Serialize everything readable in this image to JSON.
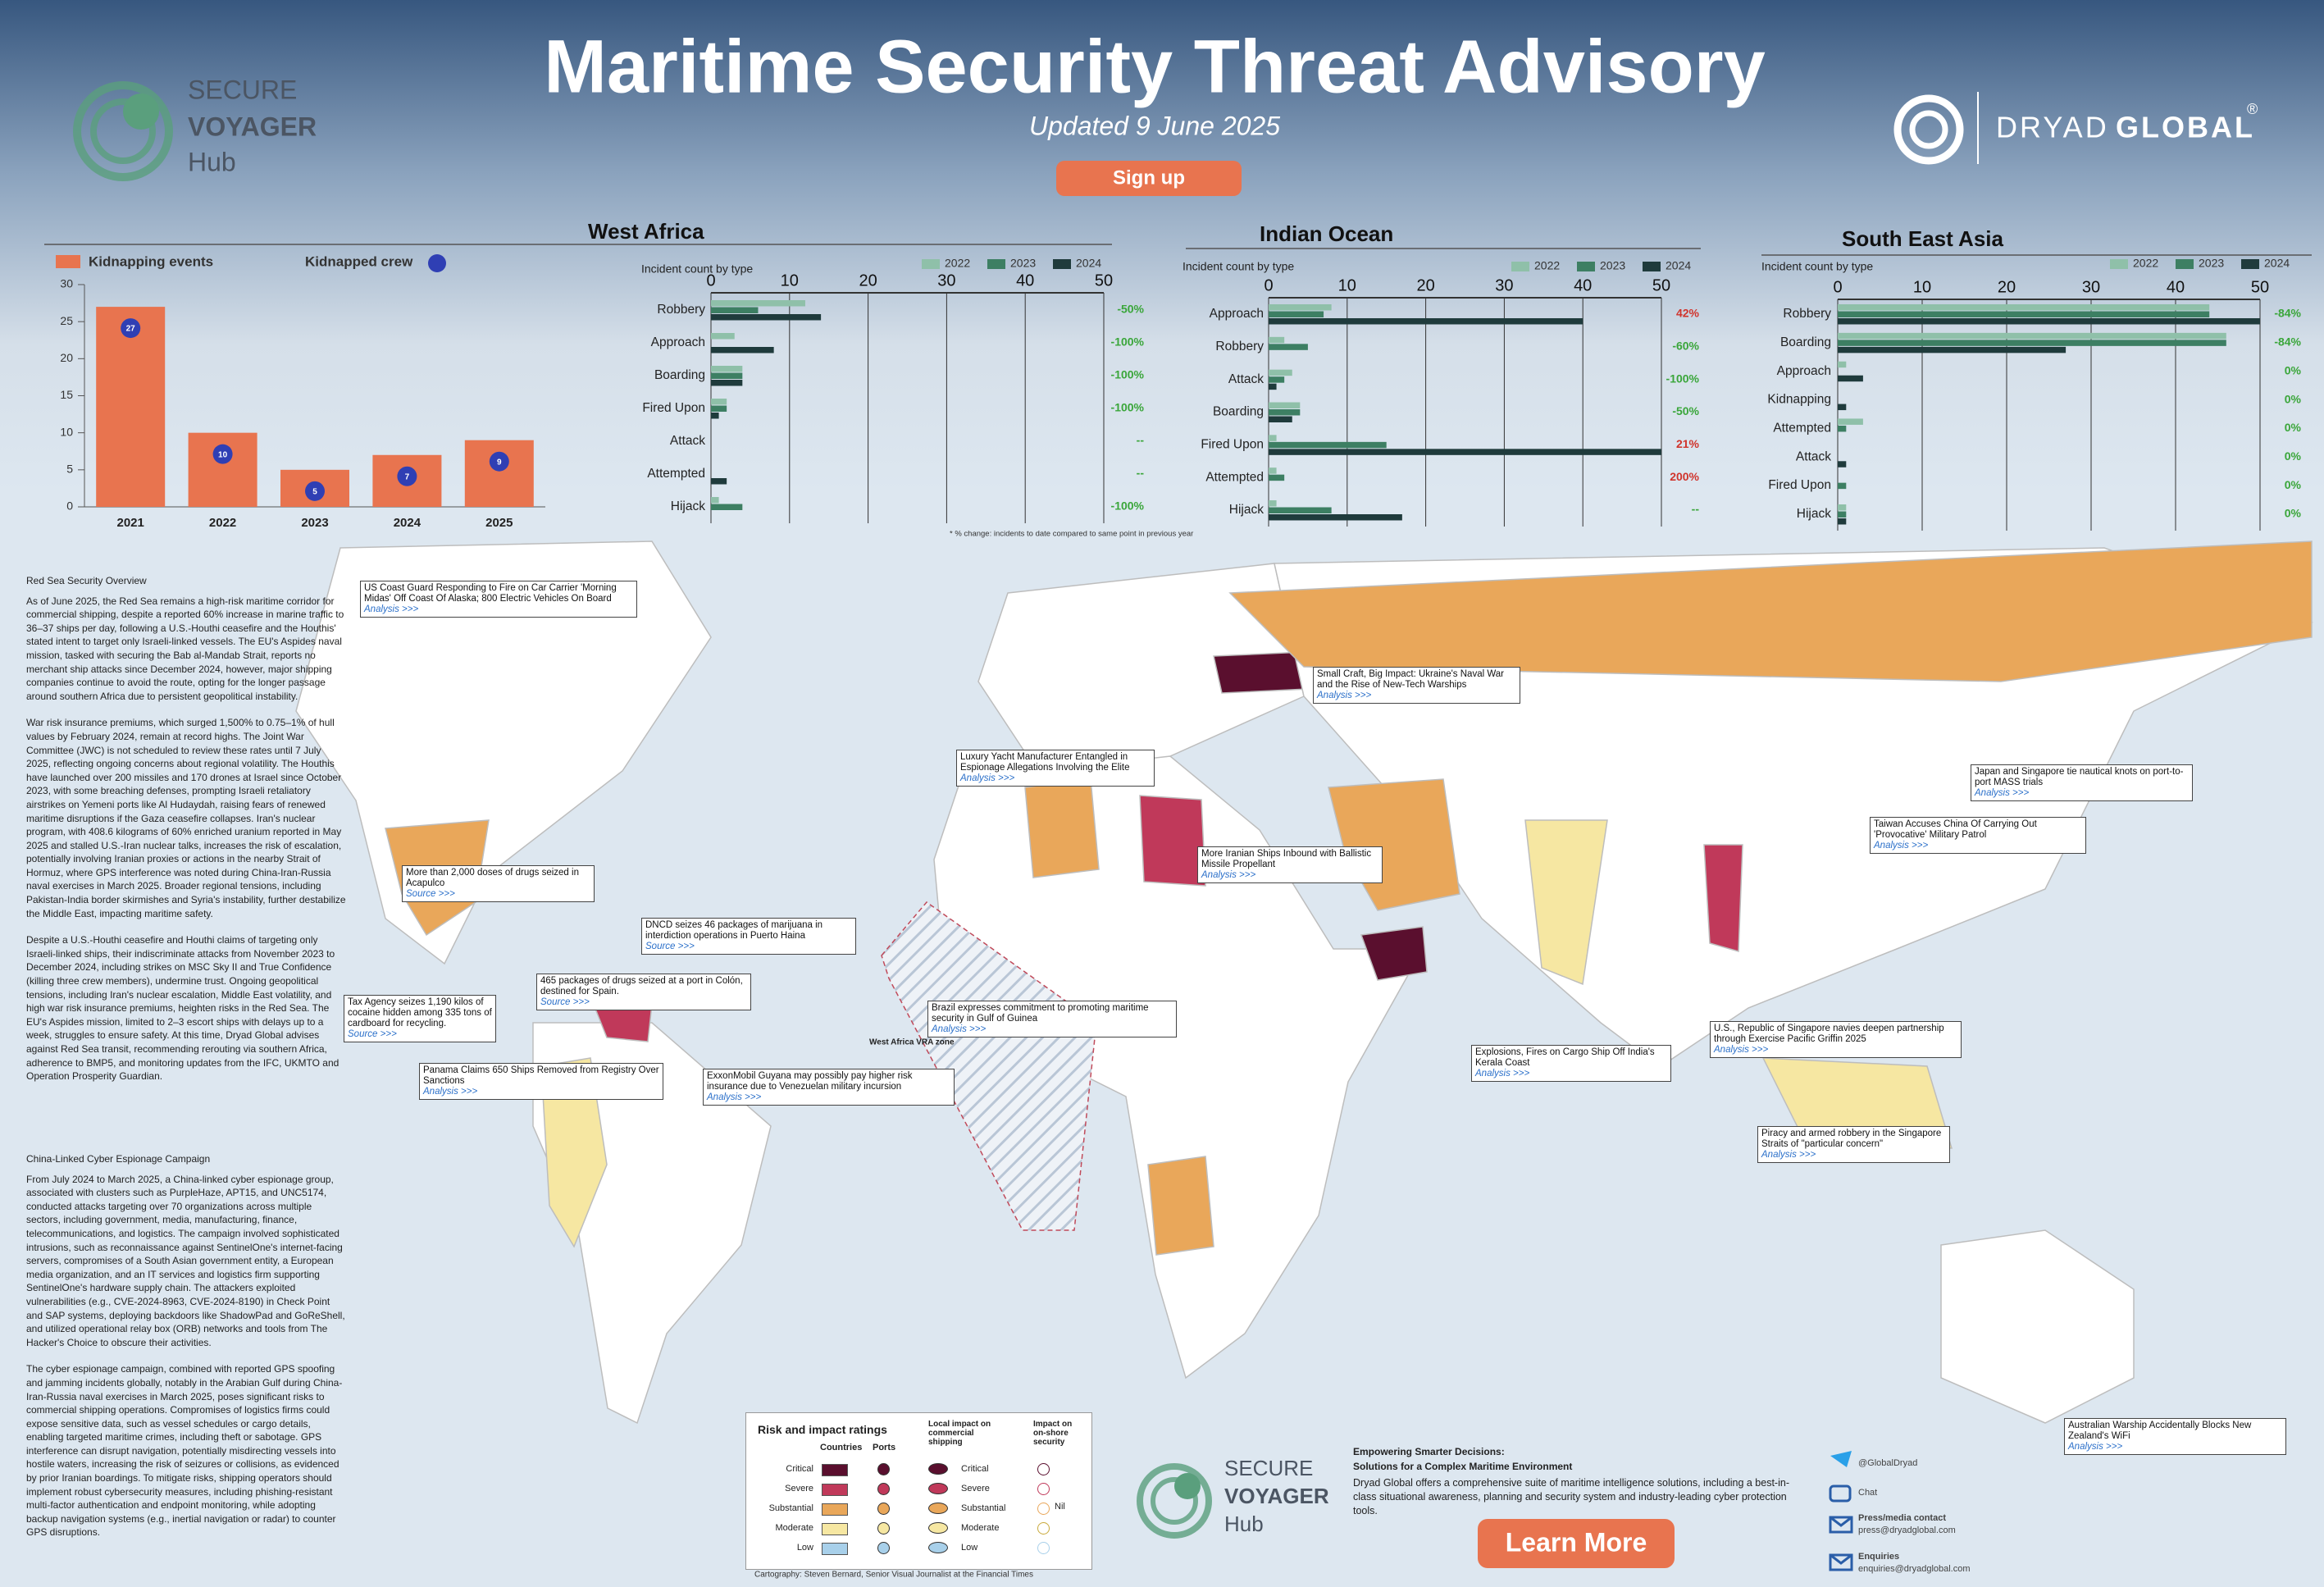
{
  "header": {
    "title": "Maritime Security Threat Advisory",
    "subtitle": "Updated 9 June 2025",
    "button": "Sign up"
  },
  "logos": {
    "secure": "SECURE",
    "voyager": "VOYAGER",
    "hub": "Hub",
    "dryad": "DRYAD",
    "global": "GLOBAL",
    "registered": "®"
  },
  "chart_data": [
    {
      "type": "bar",
      "categories": [
        "2021",
        "2022",
        "2023",
        "2024",
        "2025"
      ],
      "series": [
        {
          "name": "Kidnapping events",
          "color": "#e8744f",
          "values": [
            27,
            10,
            5,
            7,
            9
          ]
        },
        {
          "name": "Kidnapped crew",
          "color": "#2f3fb4",
          "values": [
            27,
            10,
            5,
            7,
            9
          ]
        }
      ],
      "ylim": [
        0,
        30
      ],
      "yticks": [
        0,
        5,
        10,
        15,
        20,
        25,
        30
      ]
    },
    {
      "type": "hbar",
      "title": "West Africa",
      "axis_label": "Incident count by type",
      "categories": [
        "Robbery",
        "Approach",
        "Boarding",
        "Fired Upon",
        "Attack",
        "Attempted",
        "Hijack"
      ],
      "series": [
        {
          "name": "2022",
          "color": "#8fc0a9",
          "values": [
            12,
            3,
            4,
            2,
            0,
            0,
            1
          ]
        },
        {
          "name": "2023",
          "color": "#3d7f63",
          "values": [
            6,
            0,
            4,
            2,
            0,
            0,
            4
          ]
        },
        {
          "name": "2024",
          "color": "#1f3b3c",
          "values": [
            14,
            8,
            4,
            1,
            0,
            2,
            0
          ]
        }
      ],
      "change_labels": [
        "-50%",
        "-100%",
        "-100%",
        "-100%",
        "--",
        "--",
        "-100%"
      ],
      "xlim": [
        0,
        50
      ],
      "xticks": [
        0,
        10,
        20,
        30,
        40,
        50
      ]
    },
    {
      "type": "hbar",
      "title": "Indian Ocean",
      "axis_label": "Incident count by type",
      "categories": [
        "Approach",
        "Robbery",
        "Attack",
        "Boarding",
        "Fired Upon",
        "Attempted",
        "Hijack"
      ],
      "series": [
        {
          "name": "2022",
          "color": "#8fc0a9",
          "values": [
            8,
            2,
            3,
            4,
            1,
            1,
            1
          ]
        },
        {
          "name": "2023",
          "color": "#3d7f63",
          "values": [
            7,
            5,
            2,
            4,
            15,
            2,
            8
          ]
        },
        {
          "name": "2024",
          "color": "#1f3b3c",
          "values": [
            40,
            0,
            1,
            3,
            50,
            0,
            17
          ]
        }
      ],
      "change_labels": [
        "42%",
        "-60%",
        "-100%",
        "-50%",
        "21%",
        "200%",
        "--"
      ],
      "xlim": [
        0,
        50
      ],
      "xticks": [
        0,
        10,
        20,
        30,
        40,
        50
      ]
    },
    {
      "type": "hbar",
      "title": "South East Asia",
      "axis_label": "Incident count by type",
      "categories": [
        "Robbery",
        "Boarding",
        "Approach",
        "Kidnapping",
        "Attempted",
        "Attack",
        "Fired Upon",
        "Hijack"
      ],
      "series": [
        {
          "name": "2022",
          "color": "#8fc0a9",
          "values": [
            44,
            46,
            1,
            0,
            3,
            0,
            0,
            1
          ]
        },
        {
          "name": "2023",
          "color": "#3d7f63",
          "values": [
            44,
            46,
            0,
            0,
            1,
            0,
            1,
            1
          ]
        },
        {
          "name": "2024",
          "color": "#1f3b3c",
          "values": [
            50,
            27,
            3,
            1,
            0,
            1,
            0,
            1
          ]
        }
      ],
      "change_labels": [
        "-84%",
        "-84%",
        "0%",
        "0%",
        "0%",
        "0%",
        "0%",
        "0%"
      ],
      "xlim": [
        0,
        50
      ],
      "xticks": [
        0,
        10,
        20,
        30,
        40,
        50
      ]
    }
  ],
  "footnote": "* % change: incidents to date compared to same point in previous year",
  "articles": [
    {
      "heading": "Red Sea Security Overview",
      "paragraphs": [
        "As of June 2025, the Red Sea remains a high-risk maritime corridor for commercial shipping, despite a reported 60% increase in marine traffic to 36–37 ships per day, following a U.S.-Houthi ceasefire and the Houthis' stated intent to target only Israeli-linked vessels. The EU's Aspides naval mission, tasked with securing the Bab al-Mandab Strait, reports no merchant ship attacks since December 2024, however, major shipping companies continue to avoid the route, opting for the longer passage around southern Africa due to persistent geopolitical instability.",
        "War risk insurance premiums, which surged 1,500% to 0.75–1% of hull values by February 2024, remain at record highs. The Joint War Committee (JWC) is not scheduled to review these rates until 7 July 2025, reflecting ongoing concerns about regional volatility. The Houthis have launched over 200 missiles and 170 drones at Israel since October 2023, with some breaching defenses, prompting Israeli retaliatory airstrikes on Yemeni ports like Al Hudaydah, raising fears of renewed maritime disruptions if the Gaza ceasefire collapses. Iran's nuclear program, with 408.6 kilograms of 60% enriched uranium reported in May 2025 and stalled U.S.-Iran nuclear talks, increases the risk of escalation, potentially involving Iranian proxies or actions in the nearby Strait of Hormuz, where GPS interference was noted during China-Iran-Russia naval exercises in March 2025. Broader regional tensions, including Pakistan-India border skirmishes and Syria's instability, further destabilize the Middle East, impacting maritime safety.",
        "Despite a U.S.-Houthi ceasefire and Houthi claims of targeting only Israeli-linked ships, their indiscriminate attacks from November 2023 to December 2024, including strikes on MSC Sky II and True Confidence (killing three crew members), undermine trust. Ongoing geopolitical tensions, including Iran's nuclear escalation, Middle East volatility, and high war risk insurance premiums, heighten risks in the Red Sea. The EU's Aspides mission, limited to 2–3 escort ships with delays up to a week, struggles to ensure safety. At this time, Dryad Global advises against Red Sea transit, recommending rerouting via southern Africa, adherence to BMP5, and monitoring updates from the IFC, UKMTO and Operation Prosperity Guardian."
      ]
    },
    {
      "heading": "China-Linked Cyber Espionage Campaign",
      "paragraphs": [
        "From July 2024 to March 2025, a China-linked cyber espionage group, associated with clusters such as PurpleHaze, APT15, and UNC5174, conducted attacks targeting over 70 organizations across multiple sectors, including government, media, manufacturing, finance, telecommunications, and logistics. The campaign involved sophisticated intrusions, such as reconnaissance against SentinelOne's internet-facing servers, compromises of a South Asian government entity, a European media organization, and an IT services and logistics firm supporting SentinelOne's hardware supply chain. The attackers exploited vulnerabilities (e.g., CVE-2024-8963, CVE-2024-8190) in Check Point and SAP systems, deploying backdoors like ShadowPad and GoReShell, and utilized operational relay box (ORB) networks and tools from The Hacker's Choice to obscure their activities.",
        "The cyber espionage campaign, combined with reported GPS spoofing and jamming incidents globally, notably in the Arabian Gulf during China-Iran-Russia naval exercises in March 2025, poses significant risks to commercial shipping operations. Compromises of logistics firms could expose sensitive data, such as vessel schedules or cargo details, enabling targeted maritime crimes, including theft or sabotage. GPS interference can disrupt navigation, potentially misdirecting vessels into hostile waters, increasing the risk of seizures or collisions, as evidenced by prior Iranian boardings. To mitigate risks, shipping operators should implement robust cybersecurity measures, including phishing-resistant multi-factor authentication and endpoint monitoring, while adopting backup navigation systems (e.g., inertial navigation or radar) to counter GPS disruptions."
      ]
    }
  ],
  "callouts": [
    {
      "text": "US Coast Guard Responding to Fire on Car Carrier 'Morning Midas' Off Coast Of Alaska; 800 Electric Vehicles On Board",
      "link": "Analysis >>>"
    },
    {
      "text": "Small Craft, Big Impact: Ukraine's Naval War and the Rise of New-Tech Warships",
      "link": "Analysis >>>"
    },
    {
      "text": "Luxury Yacht Manufacturer Entangled in Espionage Allegations Involving the Elite",
      "link": "Analysis >>>"
    },
    {
      "text": "Japan and Singapore tie nautical knots on port-to-port MASS trials",
      "link": "Analysis >>>"
    },
    {
      "text": "Taiwan Accuses China Of Carrying Out 'Provocative' Military Patrol",
      "link": "Analysis >>>"
    },
    {
      "text": "More Iranian Ships Inbound with Ballistic Missile Propellant",
      "link": "Analysis >>>"
    },
    {
      "text": "More than 2,000 doses of drugs seized in Acapulco",
      "link": "Source >>>"
    },
    {
      "text": "DNCD seizes 46 packages of marijuana in interdiction operations in Puerto Haina",
      "link": "Source >>>"
    },
    {
      "text": "465 packages of drugs seized at a port in Colón, destined for Spain.",
      "link": "Source >>>"
    },
    {
      "text": "Tax Agency seizes 1,190 kilos of cocaine hidden among 335 tons of cardboard for recycling.",
      "link": "Source >>>"
    },
    {
      "text": "Brazil expresses commitment to promoting maritime security in Gulf of Guinea",
      "link": "Analysis >>>"
    },
    {
      "text": "U.S., Republic of Singapore navies deepen partnership through Exercise Pacific Griffin 2025",
      "link": "Analysis >>>"
    },
    {
      "text": "Explosions, Fires on Cargo Ship Off India's Kerala Coast",
      "link": "Analysis >>>"
    },
    {
      "text": "Panama Claims 650 Ships Removed from Registry Over Sanctions",
      "link": "Analysis >>>"
    },
    {
      "text": "ExxonMobil Guyana may possibly pay higher risk insurance due to Venezuelan military incursion",
      "link": "Analysis >>>"
    },
    {
      "text": "Piracy and armed robbery in the Singapore Straits of \"particular concern\"",
      "link": "Analysis >>>"
    },
    {
      "text": "Australian Warship Accidentally Blocks New Zealand's WiFi",
      "link": "Analysis >>>"
    }
  ],
  "map_labels": {
    "vra": "West Africa VRA zone"
  },
  "legend": {
    "title": "Risk and impact ratings",
    "countries": "Countries",
    "ports": "Ports",
    "levels": [
      "Critical",
      "Severe",
      "Substantial",
      "Moderate",
      "Low"
    ],
    "local": "Local impact on commercial shipping",
    "onshore": "Impact on on-shore security",
    "impact_levels": [
      "Critical",
      "Severe",
      "Substantial",
      "Moderate",
      "Low"
    ],
    "nil": "Nil"
  },
  "credit": "Cartography: Steven Bernard, Senior Visual Journalist at the Financial Times",
  "footer": {
    "heading": "Empowering Smarter Decisions:",
    "subheading": "Solutions for a Complex Maritime Environment",
    "body": "Dryad Global offers a comprehensive suite of maritime intelligence solutions, including a best-in-class situational awareness, planning and security system and industry-leading cyber protection tools.",
    "button": "Learn More",
    "twitter": "@GlobalDryad",
    "chat": "Chat",
    "press_label": "Press/media contact",
    "press_email": "press@dryadglobal.com",
    "enquiries_label": "Enquiries",
    "enquiries_email": "enquiries@dryadglobal.com"
  }
}
